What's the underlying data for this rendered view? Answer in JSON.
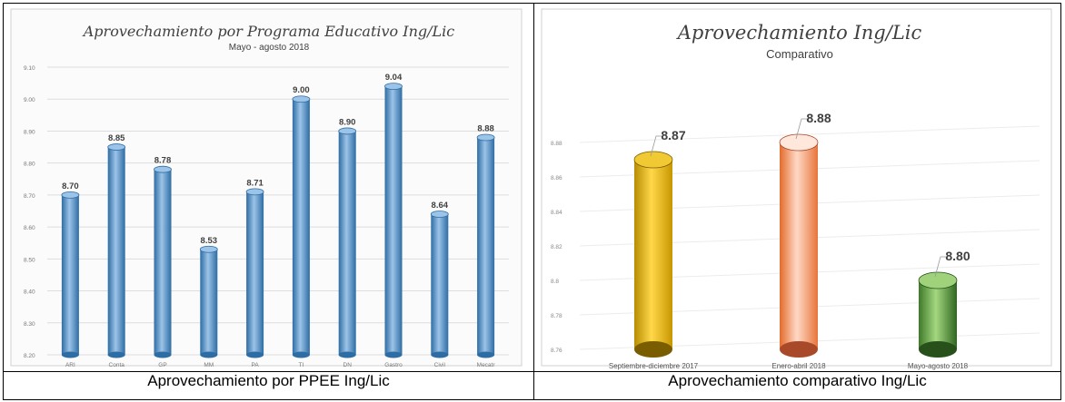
{
  "captions": {
    "left": "Aprovechamiento por PPEE Ing/Lic",
    "right": "Aprovechamiento comparativo Ing/Lic"
  },
  "chart_data": [
    {
      "type": "bar",
      "title": "Aprovechamiento por Programa Educativo Ing/Lic",
      "subtitle": "Mayo - agosto 2018",
      "categories": [
        "ARI",
        "Conta",
        "GP",
        "MM",
        "PA",
        "TI",
        "DN",
        "Gastro",
        "Civil",
        "Mecatr"
      ],
      "values": [
        8.7,
        8.85,
        8.78,
        8.53,
        8.71,
        9.0,
        8.9,
        9.04,
        8.64,
        8.88
      ],
      "value_labels": [
        "8.70",
        "8.85",
        "8.78",
        "8.53",
        "8.71",
        "9.00",
        "8.90",
        "9.04",
        "8.64",
        "8.88"
      ],
      "ylim": [
        8.2,
        9.1
      ],
      "yticks": [
        "8.20",
        "8.30",
        "8.40",
        "8.50",
        "8.60",
        "8.70",
        "8.80",
        "8.90",
        "9.00",
        "9.10"
      ],
      "grid": true,
      "colors": {
        "bar": "#5b9bd5",
        "bar_dark": "#2e6da4",
        "bar_light": "#9cc3e8"
      }
    },
    {
      "type": "bar",
      "title": "Aprovechamiento Ing/Lic",
      "subtitle": "Comparativo",
      "categories": [
        "Septiembre-diciembre 2017",
        "Enero-abril 2018",
        "Mayo-agosto 2018"
      ],
      "values": [
        8.87,
        8.88,
        8.8
      ],
      "value_labels": [
        "8.87",
        "8.88",
        "8.80"
      ],
      "ylim": [
        8.76,
        8.89
      ],
      "yticks": [
        "8.76",
        "8.78",
        "8.8",
        "8.82",
        "8.84",
        "8.86",
        "8.88"
      ],
      "grid": true,
      "colors": [
        "#e6b400",
        "#f08a4b",
        "#6aa84f"
      ]
    }
  ]
}
